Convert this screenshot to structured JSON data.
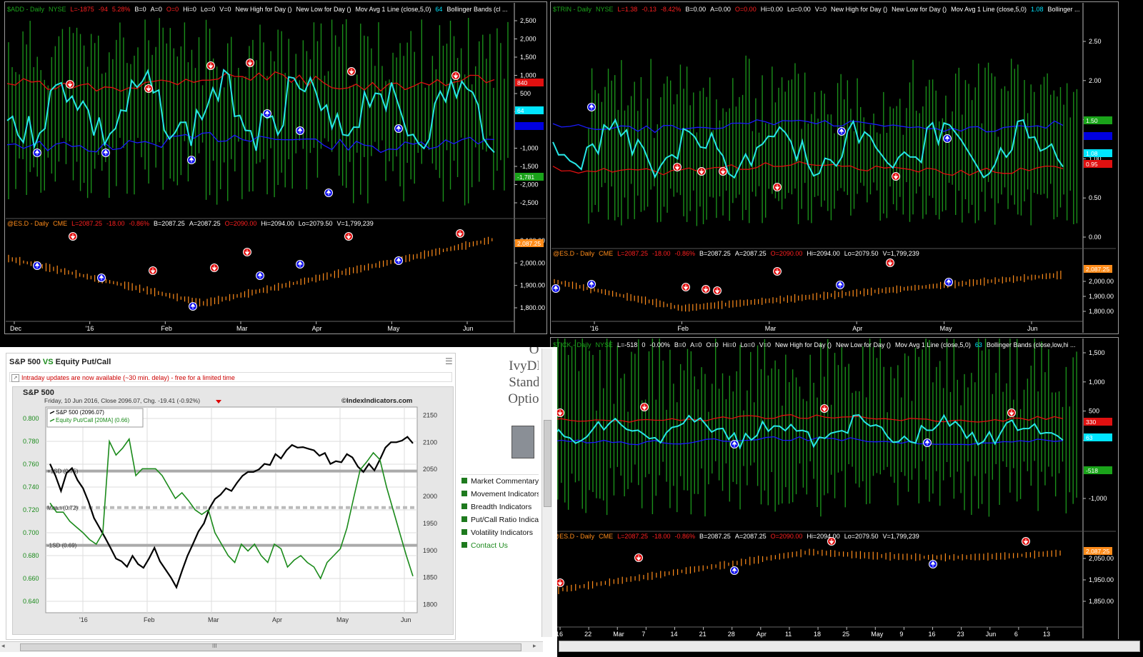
{
  "panes": {
    "tl": {
      "header": [
        {
          "text": "$ADD - Daily",
          "c": "g"
        },
        {
          "text": "NYSE",
          "c": "g"
        },
        {
          "text": "L=-1875",
          "c": "r"
        },
        {
          "text": "-94",
          "c": "r"
        },
        {
          "text": "5.28%",
          "c": "r"
        },
        {
          "text": "B=0",
          "c": "w"
        },
        {
          "text": "A=0",
          "c": "w"
        },
        {
          "text": "O=0",
          "c": "r"
        },
        {
          "text": "Hi=0",
          "c": "w"
        },
        {
          "text": "Lo=0",
          "c": "w"
        },
        {
          "text": "V=0",
          "c": "w"
        },
        {
          "text": "New High for Day ()",
          "c": "w"
        },
        {
          "text": "New Low for Day ()",
          "c": "w"
        },
        {
          "text": "Mov Avg 1 Line (close,5,0)",
          "c": "w"
        },
        {
          "text": "64",
          "c": "c"
        },
        {
          "text": "Bollinger Bands (cl ...",
          "c": "w"
        }
      ],
      "subheader": [
        {
          "text": "@ES.D - Daily",
          "c": "o"
        },
        {
          "text": "CME",
          "c": "o"
        },
        {
          "text": "L=2087.25",
          "c": "r"
        },
        {
          "text": "-18.00",
          "c": "r"
        },
        {
          "text": "-0.86%",
          "c": "r"
        },
        {
          "text": "B=2087.25",
          "c": "w"
        },
        {
          "text": "A=2087.25",
          "c": "w"
        },
        {
          "text": "O=2090.00",
          "c": "r"
        },
        {
          "text": "Hi=2094.00",
          "c": "w"
        },
        {
          "text": "Lo=2079.50",
          "c": "w"
        },
        {
          "text": "V=1,799,239",
          "c": "w"
        }
      ],
      "upper_ticks": [
        "2,500",
        "2,000",
        "1,500",
        "1,000",
        "500",
        "",
        "-1,000",
        "-1,500",
        "-2,000",
        "-2,500"
      ],
      "upper_tick_values": [
        2500,
        2000,
        1500,
        1000,
        500,
        0,
        -1000,
        -1500,
        -2000,
        -2500
      ],
      "lower_ticks": [
        "2,100.00",
        "2,000.00",
        "1,900.00",
        "1,800.00"
      ],
      "lower_tick_values": [
        2100,
        2000,
        1900,
        1800
      ],
      "x_labels": [
        "Dec",
        "'16",
        "Feb",
        "Mar",
        "Apr",
        "May",
        "Jun"
      ],
      "price_tags": [
        {
          "text": "840",
          "bg": "#e01010"
        },
        {
          "text": "64",
          "bg": "#00e5ff"
        },
        {
          "text": "",
          "bg": "#0000e0"
        },
        {
          "text": "-1,781",
          "bg": "#1aa31a"
        },
        {
          "text": "2,087.25",
          "bg": "#ff8c1a"
        }
      ]
    },
    "tr": {
      "header": [
        {
          "text": "$TRIN - Daily",
          "c": "g"
        },
        {
          "text": "NYSE",
          "c": "g"
        },
        {
          "text": "L=1.38",
          "c": "r"
        },
        {
          "text": "-0.13",
          "c": "r"
        },
        {
          "text": "-8.42%",
          "c": "r"
        },
        {
          "text": "B=0.00",
          "c": "w"
        },
        {
          "text": "A=0.00",
          "c": "w"
        },
        {
          "text": "O=0.00",
          "c": "r"
        },
        {
          "text": "Hi=0.00",
          "c": "w"
        },
        {
          "text": "Lo=0.00",
          "c": "w"
        },
        {
          "text": "V=0",
          "c": "w"
        },
        {
          "text": "New High for Day ()",
          "c": "w"
        },
        {
          "text": "New Low for Day ()",
          "c": "w"
        },
        {
          "text": "Mov Avg 1 Line (close,5,0)",
          "c": "w"
        },
        {
          "text": "1.08",
          "c": "c"
        },
        {
          "text": "Bollinger ...",
          "c": "w"
        }
      ],
      "subheader": [
        {
          "text": "@ES.D - Daily",
          "c": "o"
        },
        {
          "text": "CME",
          "c": "o"
        },
        {
          "text": "L=2087.25",
          "c": "r"
        },
        {
          "text": "-18.00",
          "c": "r"
        },
        {
          "text": "-0.86%",
          "c": "r"
        },
        {
          "text": "B=2087.25",
          "c": "w"
        },
        {
          "text": "A=2087.25",
          "c": "w"
        },
        {
          "text": "O=2090.00",
          "c": "r"
        },
        {
          "text": "Hi=2094.00",
          "c": "w"
        },
        {
          "text": "Lo=2079.50",
          "c": "w"
        },
        {
          "text": "V=1,799,239",
          "c": "w"
        }
      ],
      "upper_ticks": [
        "2.50",
        "2.00",
        "1.50",
        "1.00",
        "0.50",
        "0.00"
      ],
      "upper_tick_values": [
        2.5,
        2.0,
        1.5,
        1.0,
        0.5,
        0.0
      ],
      "lower_ticks": [
        "2,000.00",
        "1,900.00",
        "1,800.00"
      ],
      "lower_tick_values": [
        2000,
        1900,
        1800
      ],
      "x_labels": [
        "'16",
        "Feb",
        "Mar",
        "Apr",
        "May",
        "Jun"
      ],
      "price_tags": [
        {
          "text": "1.50",
          "bg": "#1aa31a"
        },
        {
          "text": "",
          "bg": "#0000e0"
        },
        {
          "text": "1.08",
          "bg": "#00e5ff"
        },
        {
          "text": "0.95",
          "bg": "#e01010"
        },
        {
          "text": "2,087.25",
          "bg": "#ff8c1a"
        }
      ]
    },
    "br": {
      "header": [
        {
          "text": "$TICK - Daily",
          "c": "g"
        },
        {
          "text": "NYSE",
          "c": "g"
        },
        {
          "text": "L=-518",
          "c": "w"
        },
        {
          "text": "0",
          "c": "w"
        },
        {
          "text": "-0.00%",
          "c": "w"
        },
        {
          "text": "B=0",
          "c": "w"
        },
        {
          "text": "A=0",
          "c": "w"
        },
        {
          "text": "O=0",
          "c": "w"
        },
        {
          "text": "Hi=0",
          "c": "w"
        },
        {
          "text": "Lo=0",
          "c": "w"
        },
        {
          "text": "V=0",
          "c": "w"
        },
        {
          "text": "New High for Day ()",
          "c": "w"
        },
        {
          "text": "New Low for Day ()",
          "c": "w"
        },
        {
          "text": "Mov Avg 1 Line (close,5,0)",
          "c": "w"
        },
        {
          "text": "63",
          "c": "c"
        },
        {
          "text": "Bollinger Bands (close,low,hi ...",
          "c": "w"
        }
      ],
      "subheader": [
        {
          "text": "@ES.D - Daily",
          "c": "o"
        },
        {
          "text": "CME",
          "c": "o"
        },
        {
          "text": "L=2087.25",
          "c": "r"
        },
        {
          "text": "-18.00",
          "c": "r"
        },
        {
          "text": "-0.86%",
          "c": "r"
        },
        {
          "text": "B=2087.25",
          "c": "w"
        },
        {
          "text": "A=2087.25",
          "c": "w"
        },
        {
          "text": "O=2090.00",
          "c": "r"
        },
        {
          "text": "Hi=2094.00",
          "c": "w"
        },
        {
          "text": "Lo=2079.50",
          "c": "w"
        },
        {
          "text": "V=1,799,239",
          "c": "w"
        }
      ],
      "upper_ticks": [
        "1,500",
        "1,000",
        "500",
        "",
        "-1,000"
      ],
      "upper_tick_values": [
        1500,
        1000,
        500,
        0,
        -1000
      ],
      "lower_ticks": [
        "2,050.00",
        "1,950.00",
        "1,850.00"
      ],
      "lower_tick_values": [
        2050,
        1950,
        1850
      ],
      "x_labels": [
        "16",
        "22",
        "Mar",
        "7",
        "14",
        "21",
        "28",
        "Apr",
        "11",
        "18",
        "25",
        "May",
        "9",
        "16",
        "23",
        "Jun",
        "6",
        "13"
      ],
      "price_tags": [
        {
          "text": "330",
          "bg": "#e01010"
        },
        {
          "text": "63",
          "bg": "#00e5ff"
        },
        {
          "text": "-518",
          "bg": "#1aa31a"
        },
        {
          "text": "2,087.25",
          "bg": "#ff8c1a"
        }
      ]
    }
  },
  "web": {
    "title_left": "S&P 500",
    "title_vs": "VS",
    "title_right": "Equity Put/Call",
    "notice": "Intraday updates are now available (~30 min. delay) - free for a limited time",
    "chart_title": "S&P 500",
    "chart_subtitle": "Friday, 10 Jun 2016, Close 2096.07, Chg. -19.41 (-0.92%)",
    "watermark": "©IndexIndicators.com",
    "legend": [
      "S&P 500 (2096.07)",
      "Equity Put/Call [20MA] (0.66)"
    ],
    "band_labels": [
      "+1SD (0.75)",
      "Mean (0.72)",
      "-1SD (0.69)"
    ],
    "sidebar_heading": [
      "Op",
      "IvyDB",
      "Standa",
      "Option"
    ],
    "sidebar_links": [
      "Market Commentary",
      "Movement Indicators",
      "Breadth Indicators",
      "Put/Call Ratio Indicators",
      "Volatility Indicators"
    ],
    "contact": "Contact Us",
    "hscroll_label": "III"
  },
  "chart_data": {
    "type": "line",
    "title": "S&P 500",
    "x_labels": [
      "'16",
      "Feb",
      "Mar",
      "Apr",
      "May",
      "Jun"
    ],
    "y_left_ticks": [
      "0.800",
      "0.780",
      "0.760",
      "0.740",
      "0.720",
      "0.700",
      "0.680",
      "0.660",
      "0.640"
    ],
    "y_left_values": [
      0.8,
      0.78,
      0.76,
      0.74,
      0.72,
      0.7,
      0.68,
      0.66,
      0.64
    ],
    "y_right_ticks": [
      "2150",
      "2100",
      "2050",
      "2000",
      "1950",
      "1900",
      "1850",
      "1800"
    ],
    "y_right_values": [
      2150,
      2100,
      2050,
      2000,
      1950,
      1900,
      1850,
      1800
    ],
    "series": [
      {
        "name": "S&P 500 (2096.07)",
        "axis": "right",
        "color": "#000000",
        "values": [
          2060,
          2038,
          2010,
          2043,
          2052,
          2030,
          2015,
          1990,
          1960,
          1942,
          1924,
          1905,
          1885,
          1880,
          1870,
          1890,
          1875,
          1868,
          1885,
          1905,
          1880,
          1865,
          1850,
          1832,
          1862,
          1890,
          1912,
          1935,
          1950,
          1978,
          1995,
          2003,
          2015,
          2010,
          2025,
          2038,
          2045,
          2045,
          2050,
          2060,
          2058,
          2078,
          2070,
          2085,
          2095,
          2090,
          2091,
          2088,
          2085,
          2075,
          2080,
          2060,
          2065,
          2063,
          2078,
          2072,
          2055,
          2045,
          2060,
          2048,
          2068,
          2090,
          2100,
          2100,
          2103,
          2110,
          2098
        ]
      },
      {
        "name": "Equity Put/Call [20MA] (0.66)",
        "axis": "left",
        "color": "#1a8a1a",
        "values": [
          0.726,
          0.718,
          0.718,
          0.71,
          0.705,
          0.7,
          0.694,
          0.69,
          0.7,
          0.78,
          0.768,
          0.774,
          0.782,
          0.75,
          0.756,
          0.756,
          0.756,
          0.75,
          0.74,
          0.73,
          0.735,
          0.728,
          0.72,
          0.716,
          0.72,
          0.7,
          0.69,
          0.68,
          0.674,
          0.69,
          0.684,
          0.69,
          0.68,
          0.674,
          0.69,
          0.686,
          0.67,
          0.676,
          0.68,
          0.674,
          0.67,
          0.66,
          0.674,
          0.68,
          0.686,
          0.704,
          0.73,
          0.755,
          0.762,
          0.77,
          0.764,
          0.74,
          0.72,
          0.7,
          0.68,
          0.662
        ]
      }
    ],
    "bands": [
      {
        "label": "+1SD (0.75)",
        "value": 0.754
      },
      {
        "label": "Mean (0.72)",
        "value": 0.722
      },
      {
        "label": "-1SD (0.69)",
        "value": 0.689
      }
    ],
    "grid": true
  }
}
